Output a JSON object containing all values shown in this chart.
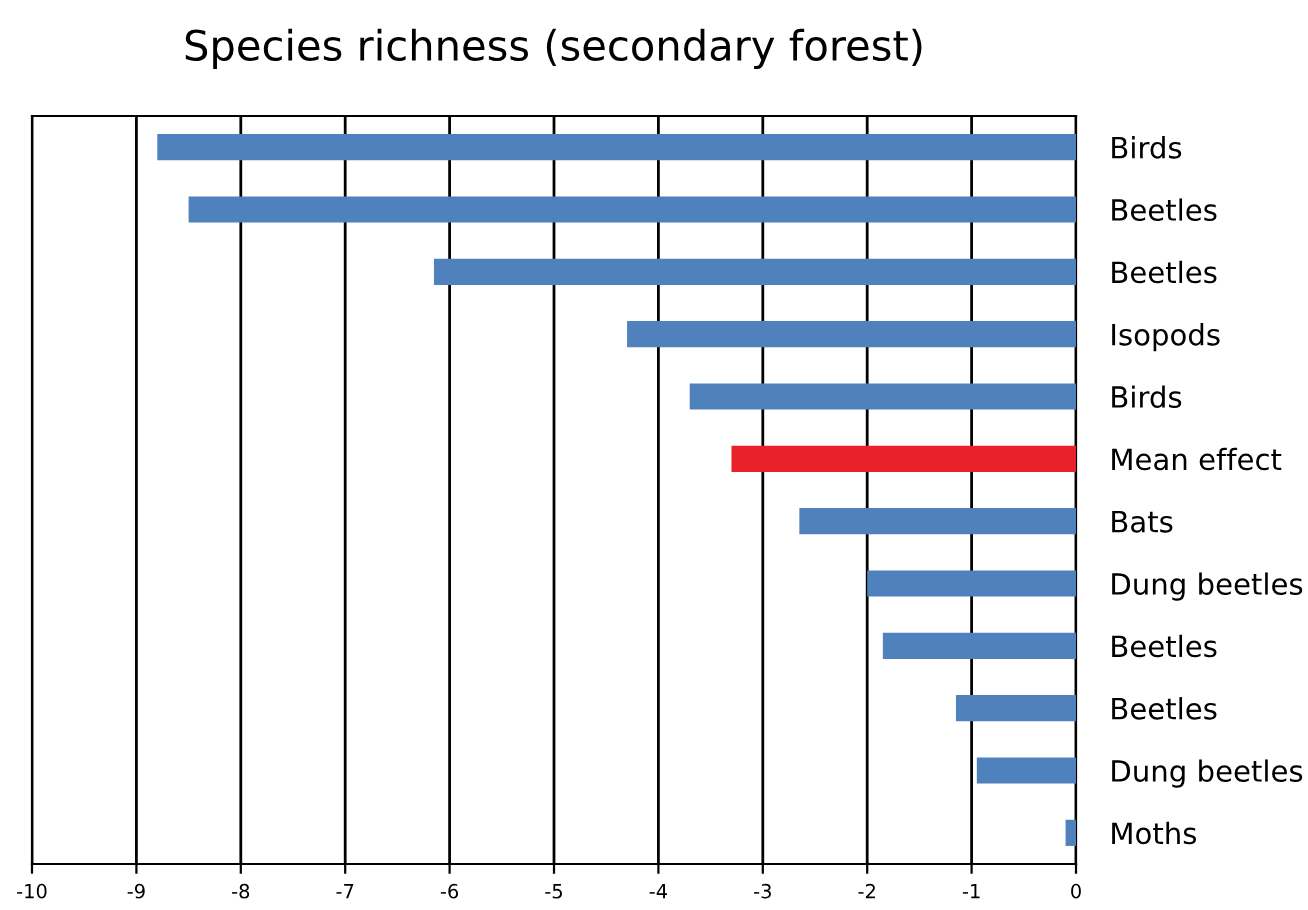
{
  "chart_data": {
    "type": "bar",
    "orientation": "horizontal",
    "title": "Species richness (secondary forest)",
    "categories": [
      "Birds",
      "Beetles",
      "Beetles",
      "Isopods",
      "Birds",
      "Mean effect",
      "Bats",
      "Dung beetles",
      "Beetles",
      "Beetles",
      "Dung beetles",
      "Moths"
    ],
    "values": [
      -8.8,
      -8.5,
      -6.15,
      -4.3,
      -3.7,
      -3.3,
      -2.65,
      -2.0,
      -1.85,
      -1.15,
      -0.95,
      -0.1
    ],
    "colors": [
      "#4f81bd",
      "#4f81bd",
      "#4f81bd",
      "#4f81bd",
      "#4f81bd",
      "#e8212a",
      "#4f81bd",
      "#4f81bd",
      "#4f81bd",
      "#4f81bd",
      "#4f81bd",
      "#4f81bd"
    ],
    "xlim": [
      -10,
      0
    ],
    "xticks": [
      -10,
      -9,
      -8,
      -7,
      -6,
      -5,
      -4,
      -3,
      -2,
      -1,
      0
    ],
    "grid": "x",
    "legend": false
  }
}
